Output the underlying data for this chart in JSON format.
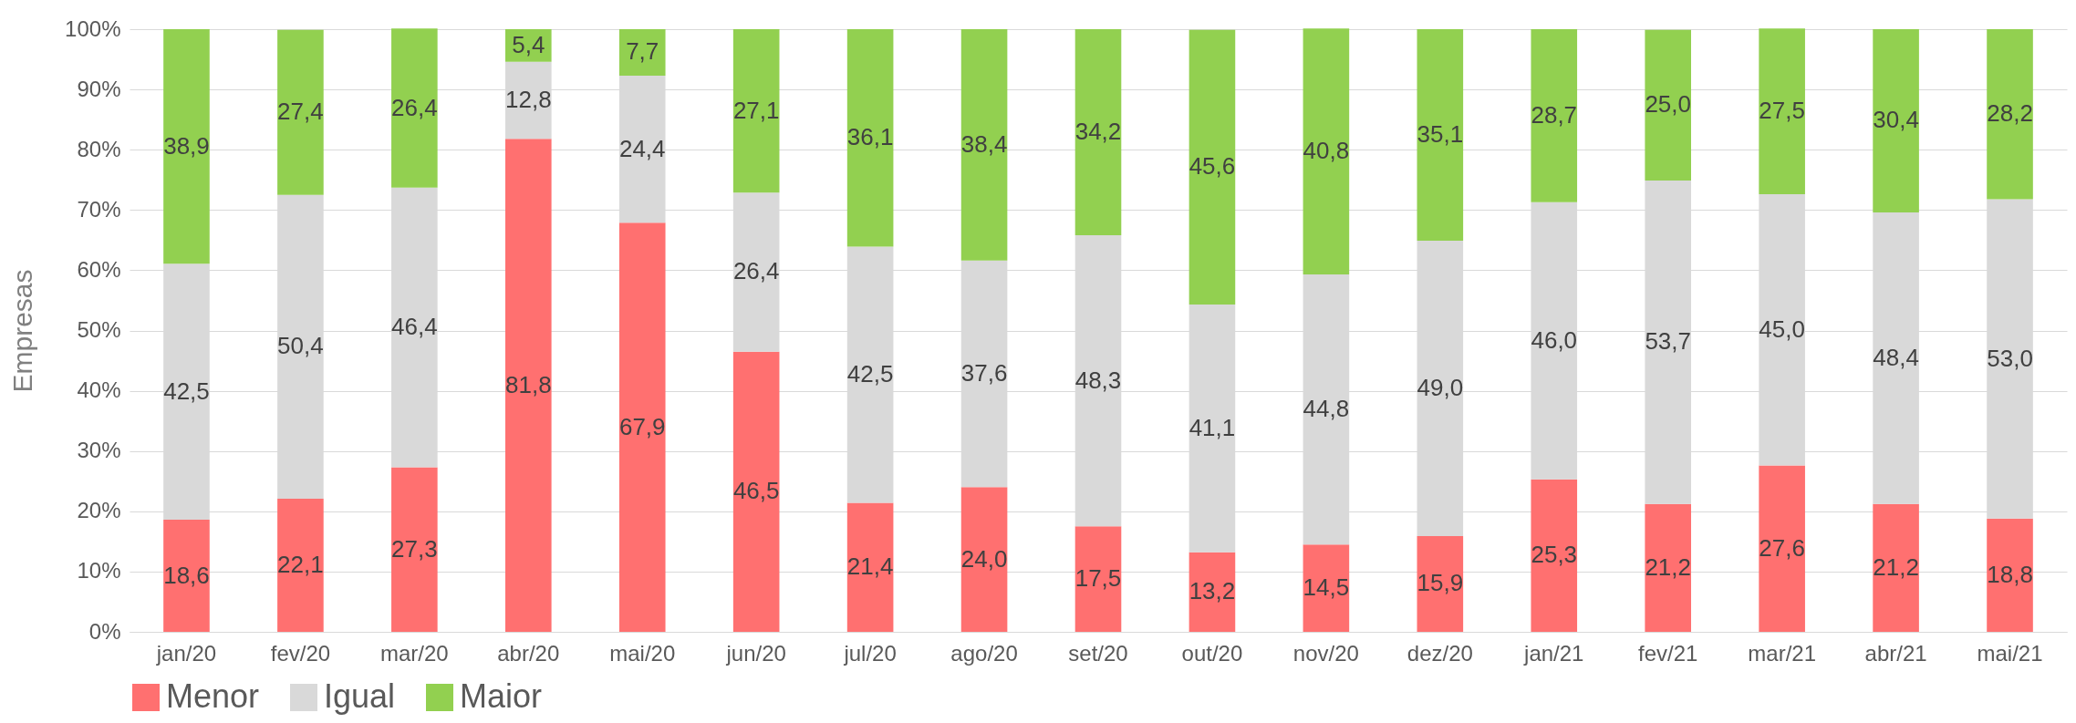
{
  "chart_data": {
    "type": "bar",
    "stacked": true,
    "ylabel": "Empresas",
    "categories": [
      "jan/20",
      "fev/20",
      "mar/20",
      "abr/20",
      "mai/20",
      "jun/20",
      "jul/20",
      "ago/20",
      "set/20",
      "out/20",
      "nov/20",
      "dez/20",
      "jan/21",
      "fev/21",
      "mar/21",
      "abr/21",
      "mai/21"
    ],
    "series": [
      {
        "name": "Menor",
        "color": "#ff7070",
        "values": [
          18.6,
          22.1,
          27.3,
          81.8,
          67.9,
          46.5,
          21.4,
          24.0,
          17.5,
          13.2,
          14.5,
          15.9,
          25.3,
          21.2,
          27.6,
          21.2,
          18.8
        ],
        "value_labels": [
          "18,6",
          "22,1",
          "27,3",
          "81,8",
          "67,9",
          "46,5",
          "21,4",
          "24,0",
          "17,5",
          "13,2",
          "14,5",
          "15,9",
          "25,3",
          "21,2",
          "27,6",
          "21,2",
          "18,8"
        ]
      },
      {
        "name": "Igual",
        "color": "#d9d9d9",
        "values": [
          42.5,
          50.4,
          46.4,
          12.8,
          24.4,
          26.4,
          42.5,
          37.6,
          48.3,
          41.1,
          44.8,
          49.0,
          46.0,
          53.7,
          45.0,
          48.4,
          53.0
        ],
        "value_labels": [
          "42,5",
          "50,4",
          "46,4",
          "12,8",
          "24,4",
          "26,4",
          "42,5",
          "37,6",
          "48,3",
          "41,1",
          "44,8",
          "49,0",
          "46,0",
          "53,7",
          "45,0",
          "48,4",
          "53,0"
        ]
      },
      {
        "name": "Maior",
        "color": "#92d050",
        "values": [
          38.9,
          27.4,
          26.4,
          5.4,
          7.7,
          27.1,
          36.1,
          38.4,
          34.2,
          45.6,
          40.8,
          35.1,
          28.7,
          25.0,
          27.5,
          30.4,
          28.2
        ],
        "value_labels": [
          "38,9",
          "27,4",
          "26,4",
          "5,4",
          "7,7",
          "27,1",
          "36,1",
          "38,4",
          "34,2",
          "45,6",
          "40,8",
          "35,1",
          "28,7",
          "25,0",
          "27,5",
          "30,4",
          "28,2"
        ]
      }
    ],
    "ylim": [
      0,
      100
    ],
    "yticks": [
      {
        "value": 0,
        "label": "0%"
      },
      {
        "value": 10,
        "label": "10%"
      },
      {
        "value": 20,
        "label": "20%"
      },
      {
        "value": 30,
        "label": "30%"
      },
      {
        "value": 40,
        "label": "40%"
      },
      {
        "value": 50,
        "label": "50%"
      },
      {
        "value": 60,
        "label": "60%"
      },
      {
        "value": 70,
        "label": "70%"
      },
      {
        "value": 80,
        "label": "80%"
      },
      {
        "value": 90,
        "label": "90%"
      },
      {
        "value": 100,
        "label": "100%"
      }
    ],
    "grid": "y",
    "legend": "bottom"
  }
}
